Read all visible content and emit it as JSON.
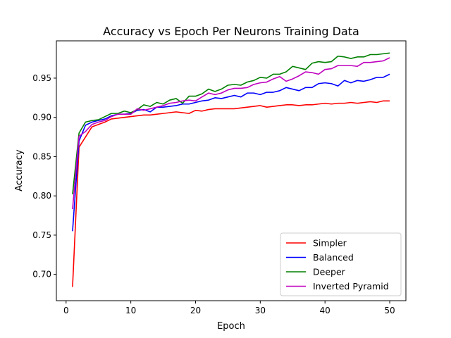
{
  "chart_data": {
    "type": "line",
    "title": "Accuracy vs Epoch Per Neurons Training Data",
    "xlabel": "Epoch",
    "ylabel": "Accuracy",
    "xlim": [
      -1.5,
      52.5
    ],
    "ylim": [
      0.6665,
      0.9975
    ],
    "xticks": [
      0,
      10,
      20,
      30,
      40,
      50
    ],
    "yticks": [
      0.7,
      0.75,
      0.8,
      0.85,
      0.9,
      0.95
    ],
    "xtick_labels": [
      "0",
      "10",
      "20",
      "30",
      "40",
      "50"
    ],
    "ytick_labels": [
      "0.70",
      "0.75",
      "0.80",
      "0.85",
      "0.90",
      "0.95"
    ],
    "grid": false,
    "legend_position": "lower-right",
    "x": [
      1,
      2,
      3,
      4,
      5,
      6,
      7,
      8,
      9,
      10,
      11,
      12,
      13,
      14,
      15,
      16,
      17,
      18,
      19,
      20,
      21,
      22,
      23,
      24,
      25,
      26,
      27,
      28,
      29,
      30,
      31,
      32,
      33,
      34,
      35,
      36,
      37,
      38,
      39,
      40,
      41,
      42,
      43,
      44,
      45,
      46,
      47,
      48,
      49,
      50
    ],
    "series": [
      {
        "name": "Simpler",
        "color": "#ff0000",
        "values": [
          0.684,
          0.862,
          0.875,
          0.888,
          0.891,
          0.894,
          0.898,
          0.899,
          0.9,
          0.901,
          0.902,
          0.903,
          0.903,
          0.904,
          0.905,
          0.906,
          0.907,
          0.906,
          0.905,
          0.909,
          0.908,
          0.91,
          0.911,
          0.911,
          0.911,
          0.911,
          0.912,
          0.913,
          0.914,
          0.915,
          0.913,
          0.914,
          0.915,
          0.916,
          0.916,
          0.915,
          0.916,
          0.916,
          0.917,
          0.918,
          0.917,
          0.918,
          0.918,
          0.919,
          0.918,
          0.919,
          0.92,
          0.919,
          0.921,
          0.921
        ]
      },
      {
        "name": "Balanced",
        "color": "#0000ff",
        "values": [
          0.755,
          0.87,
          0.89,
          0.894,
          0.896,
          0.898,
          0.902,
          0.904,
          0.904,
          0.905,
          0.909,
          0.91,
          0.907,
          0.913,
          0.913,
          0.914,
          0.915,
          0.917,
          0.917,
          0.919,
          0.921,
          0.922,
          0.925,
          0.924,
          0.926,
          0.928,
          0.926,
          0.931,
          0.931,
          0.929,
          0.932,
          0.932,
          0.934,
          0.938,
          0.936,
          0.934,
          0.938,
          0.938,
          0.943,
          0.944,
          0.943,
          0.94,
          0.947,
          0.944,
          0.947,
          0.946,
          0.948,
          0.951,
          0.951,
          0.955
        ]
      },
      {
        "name": "Deeper",
        "color": "#008000",
        "values": [
          0.802,
          0.88,
          0.894,
          0.896,
          0.897,
          0.901,
          0.905,
          0.905,
          0.908,
          0.906,
          0.91,
          0.916,
          0.914,
          0.919,
          0.917,
          0.922,
          0.924,
          0.918,
          0.927,
          0.927,
          0.93,
          0.936,
          0.933,
          0.936,
          0.941,
          0.942,
          0.941,
          0.945,
          0.947,
          0.951,
          0.95,
          0.955,
          0.955,
          0.958,
          0.965,
          0.963,
          0.961,
          0.969,
          0.971,
          0.97,
          0.971,
          0.978,
          0.977,
          0.975,
          0.977,
          0.977,
          0.98,
          0.98,
          0.981,
          0.982
        ]
      },
      {
        "name": "Inverted Pyramid",
        "color": "#bf00bf",
        "values": [
          0.783,
          0.876,
          0.882,
          0.891,
          0.894,
          0.896,
          0.901,
          0.904,
          0.904,
          0.904,
          0.911,
          0.909,
          0.911,
          0.913,
          0.915,
          0.918,
          0.919,
          0.921,
          0.922,
          0.921,
          0.926,
          0.931,
          0.929,
          0.931,
          0.935,
          0.937,
          0.937,
          0.938,
          0.942,
          0.944,
          0.945,
          0.949,
          0.952,
          0.946,
          0.949,
          0.953,
          0.958,
          0.957,
          0.955,
          0.961,
          0.962,
          0.966,
          0.966,
          0.966,
          0.965,
          0.97,
          0.97,
          0.971,
          0.972,
          0.976
        ]
      }
    ]
  }
}
